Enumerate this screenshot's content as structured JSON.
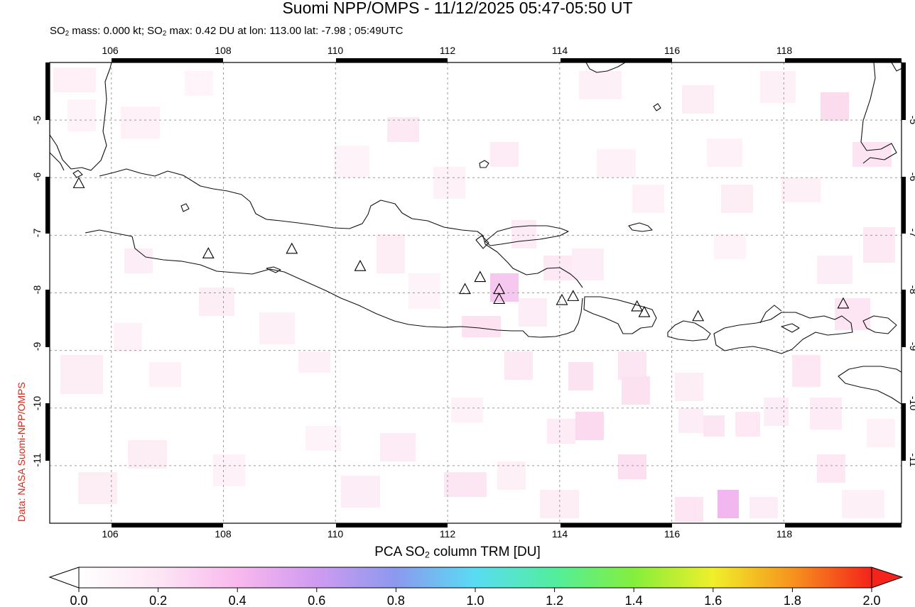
{
  "header": {
    "title": "Suomi NPP/OMPS - 11/12/2025 05:47-05:50 UT",
    "subtitle_prefix": "SO",
    "subtitle_sub": "2",
    "subtitle_mass": " mass: 0.000 kt; SO",
    "subtitle_rest": " max: 0.42 DU at lon: 113.00 lat: -7.98 ; 05:49UTC"
  },
  "credit": "Data: NASA Suomi-NPP/OMPS",
  "map": {
    "lon_ticks": [
      "106",
      "108",
      "110",
      "112",
      "114",
      "116",
      "118"
    ],
    "lat_ticks": [
      "-5",
      "-6",
      "-7",
      "-8",
      "-9",
      "-10",
      "-11"
    ],
    "lon_range": [
      104.9,
      120.1
    ],
    "lat_range": [
      -12.0,
      -4.0
    ],
    "volcanoes": [
      {
        "lon": 105.42,
        "lat": -6.1
      },
      {
        "lon": 107.73,
        "lat": -7.32
      },
      {
        "lon": 109.22,
        "lat": -7.24
      },
      {
        "lon": 110.44,
        "lat": -7.54
      },
      {
        "lon": 112.31,
        "lat": -7.94
      },
      {
        "lon": 112.58,
        "lat": -7.73
      },
      {
        "lon": 112.92,
        "lat": -7.94
      },
      {
        "lon": 112.92,
        "lat": -8.11
      },
      {
        "lon": 114.04,
        "lat": -8.13
      },
      {
        "lon": 114.24,
        "lat": -8.06
      },
      {
        "lon": 115.38,
        "lat": -8.24
      },
      {
        "lon": 115.51,
        "lat": -8.34
      },
      {
        "lon": 116.47,
        "lat": -8.41
      },
      {
        "lon": 119.06,
        "lat": -8.19
      }
    ]
  },
  "colorbar": {
    "label_prefix": "PCA SO",
    "label_sub": "2",
    "label_suffix": " column TRM [DU]",
    "ticks": [
      "0.0",
      "0.2",
      "0.4",
      "0.6",
      "0.8",
      "1.0",
      "1.2",
      "1.4",
      "1.6",
      "1.8",
      "2.0"
    ],
    "colors": [
      "#ffffff",
      "#fde6f4",
      "#f9b8ee",
      "#cf9bf0",
      "#8b99ee",
      "#59dcf3",
      "#52ee9d",
      "#85ee3c",
      "#f0ef2a",
      "#f7931e",
      "#f4231b"
    ]
  }
}
